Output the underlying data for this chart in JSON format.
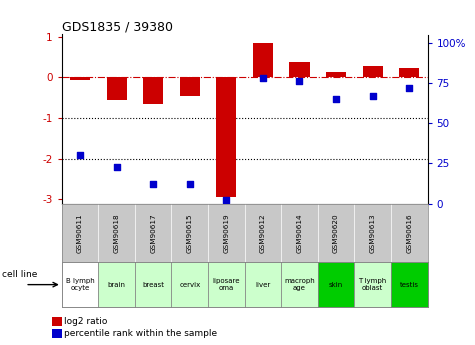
{
  "title": "GDS1835 / 39380",
  "gsm_labels": [
    "GSM90611",
    "GSM90618",
    "GSM90617",
    "GSM90615",
    "GSM90619",
    "GSM90612",
    "GSM90614",
    "GSM90620",
    "GSM90613",
    "GSM90616"
  ],
  "cell_lines": [
    "B lymph\nocyte",
    "brain",
    "breast",
    "cervix",
    "liposare\noma",
    "liver",
    "macroph\nage",
    "skin",
    "T lymph\noblast",
    "testis"
  ],
  "cell_bg": [
    "#ffffff",
    "#ccffcc",
    "#ccffcc",
    "#ccffcc",
    "#ccffcc",
    "#ccffcc",
    "#ccffcc",
    "#00cc00",
    "#ccffcc",
    "#00cc00"
  ],
  "log2_ratio": [
    -0.07,
    -0.55,
    -0.65,
    -0.45,
    -2.95,
    0.85,
    0.38,
    0.13,
    0.28,
    0.22
  ],
  "percentile_rank": [
    30,
    23,
    12,
    12,
    2,
    78,
    76,
    65,
    67,
    72
  ],
  "bar_color": "#cc0000",
  "dot_color": "#0000cc",
  "ylim": [
    -3.1,
    1.05
  ],
  "right_ylim": [
    0,
    105
  ],
  "right_yticks": [
    0,
    25,
    50,
    75,
    100
  ],
  "right_yticklabels": [
    "0",
    "25",
    "50",
    "75",
    "100%"
  ],
  "left_yticks": [
    -3,
    -2,
    -1,
    0,
    1
  ],
  "left_yticklabels": [
    "-3",
    "-2",
    "-1",
    "0",
    "1"
  ],
  "hline_y": 0,
  "dotted_lines": [
    -1,
    -2
  ],
  "bar_width": 0.55
}
